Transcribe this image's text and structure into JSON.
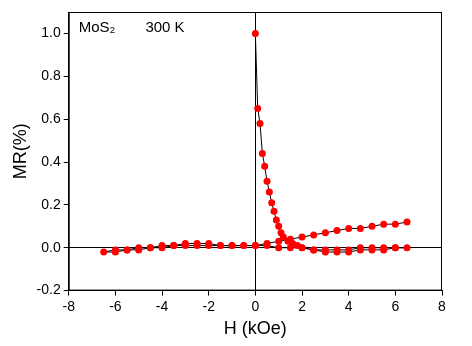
{
  "chart_data": {
    "type": "scatter",
    "annotations": [
      "MoS₂",
      "300 K"
    ],
    "x_label": "H (kOe)",
    "y_label": "MR(%)",
    "x": [
      0,
      0.1,
      0.2,
      0.3,
      0.4,
      0.5,
      0.6,
      0.7,
      0.8,
      0.9,
      1.0,
      1.1,
      1.2,
      1.4,
      1.6,
      1.8,
      2.0,
      2.5,
      3.0,
      3.5,
      4.0,
      4.5,
      5.0,
      5.5,
      6.0,
      6.5,
      6.0,
      5.5,
      5.0,
      4.5,
      4.0,
      3.5,
      3.0,
      2.5,
      2.0,
      1.5,
      1.0,
      0.5,
      0,
      -0.5,
      -1.0,
      -1.5,
      -2.0,
      -2.5,
      -3.0,
      -3.5,
      -4.0,
      -4.5,
      -5.0,
      -5.5,
      -6.0,
      -6.5,
      -6.0,
      -5.5,
      -5.0,
      -4.5,
      -4.0,
      -3.5,
      -3.0,
      -2.5,
      -2.0,
      -1.5,
      -1.0,
      -0.5,
      0,
      0.5,
      1.0,
      1.5,
      2.0,
      2.5,
      3.0,
      3.5,
      4.0,
      4.5,
      5.0,
      5.5,
      6.0,
      6.5
    ],
    "values": [
      1.0,
      0.65,
      0.58,
      0.44,
      0.38,
      0.31,
      0.26,
      0.21,
      0.17,
      0.13,
      0.1,
      0.07,
      0.05,
      0.03,
      0.02,
      0.01,
      0.0,
      -0.01,
      -0.02,
      -0.02,
      -0.02,
      -0.01,
      -0.01,
      -0.01,
      0.0,
      0.0,
      0.0,
      0.0,
      0.0,
      0.0,
      -0.01,
      -0.01,
      -0.01,
      -0.01,
      0.0,
      0.0,
      0.0,
      0.01,
      0.01,
      0.01,
      0.01,
      0.01,
      0.02,
      0.02,
      0.02,
      0.01,
      0.01,
      0.0,
      0.0,
      -0.01,
      -0.01,
      -0.02,
      -0.02,
      -0.01,
      -0.01,
      0.0,
      0.0,
      0.01,
      0.01,
      0.01,
      0.01,
      0.01,
      0.01,
      0.01,
      0.01,
      0.02,
      0.03,
      0.04,
      0.05,
      0.06,
      0.07,
      0.08,
      0.09,
      0.09,
      0.1,
      0.11,
      0.11,
      0.12
    ],
    "color": "#ff0000",
    "marker": "circle",
    "line_style": "solid",
    "xlim": [
      -8,
      8
    ],
    "xticks": [
      -8,
      -6,
      -4,
      -2,
      0,
      2,
      4,
      6,
      8
    ],
    "ylim": [
      -0.2,
      1.1
    ],
    "yticks": [
      {
        "value": -0.2,
        "label": "-0.2"
      },
      {
        "value": 0,
        "label": "0.0"
      },
      {
        "value": 0.2,
        "label": "0.2"
      },
      {
        "value": 0.4,
        "label": "0.4"
      },
      {
        "value": 0.6,
        "label": "0.6"
      },
      {
        "value": 0.8,
        "label": "0.8"
      },
      {
        "value": 1.0,
        "label": "1.0"
      }
    ],
    "grid": false
  }
}
